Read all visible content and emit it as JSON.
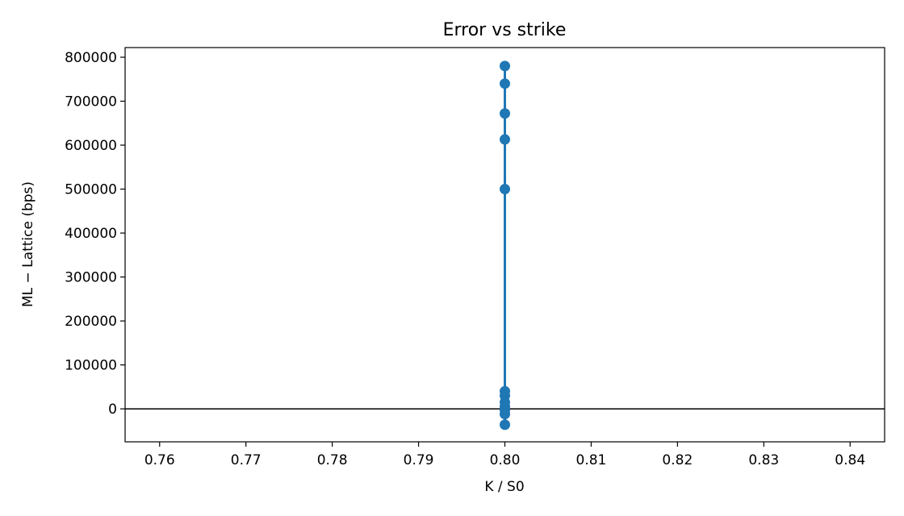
{
  "chart_data": {
    "type": "line",
    "title": "Error vs strike",
    "xlabel": "K / S0",
    "ylabel": "ML − Lattice (bps)",
    "xlim": [
      0.756,
      0.844
    ],
    "ylim": [
      -75000,
      822000
    ],
    "x_ticks": [
      0.76,
      0.77,
      0.78,
      0.79,
      0.8,
      0.81,
      0.82,
      0.83,
      0.84
    ],
    "x_tick_labels": [
      "0.76",
      "0.77",
      "0.78",
      "0.79",
      "0.80",
      "0.81",
      "0.82",
      "0.83",
      "0.84"
    ],
    "y_ticks": [
      0,
      100000,
      200000,
      300000,
      400000,
      500000,
      600000,
      700000,
      800000
    ],
    "y_tick_labels": [
      "0",
      "100000",
      "200000",
      "300000",
      "400000",
      "500000",
      "600000",
      "700000",
      "800000"
    ],
    "reference_line_y": 0,
    "grid": false,
    "series": [
      {
        "color": "#1f77b4",
        "marker": "circle",
        "x": [
          0.8,
          0.8,
          0.8,
          0.8,
          0.8,
          0.8,
          0.8,
          0.8,
          0.8,
          0.8,
          0.8,
          0.8
        ],
        "y": [
          780000,
          740000,
          672000,
          613000,
          500000,
          40000,
          30000,
          15000,
          5000,
          -3000,
          -12000,
          -36000
        ]
      }
    ]
  }
}
